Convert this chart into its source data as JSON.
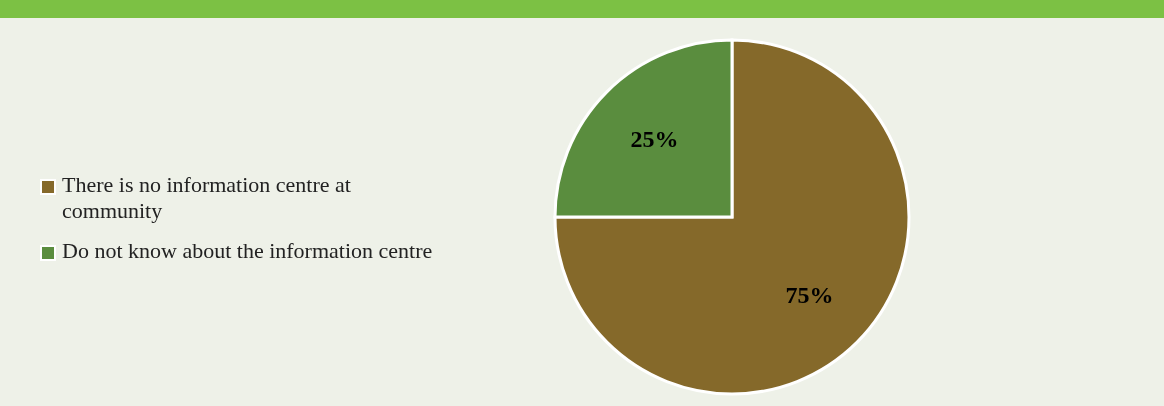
{
  "chart_data": {
    "type": "pie",
    "categories": [
      "There is no information centre at community",
      "Do not know about the information centre"
    ],
    "values": [
      75,
      25
    ],
    "colors": [
      "#85692a",
      "#5a8d3e"
    ],
    "value_labels": [
      "75%",
      "25%"
    ],
    "legend": "left"
  }
}
